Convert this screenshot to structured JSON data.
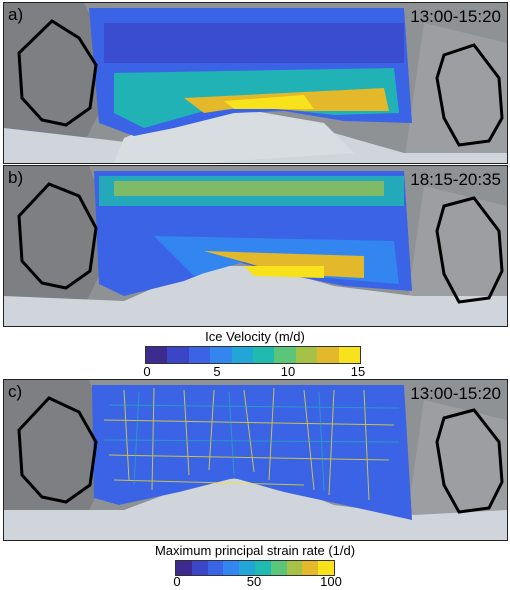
{
  "panels": [
    {
      "label": "a)",
      "time": "13:00-15:20",
      "field": "velocity"
    },
    {
      "label": "b)",
      "time": "18:15-20:35",
      "field": "velocity"
    },
    {
      "label": "c)",
      "time": "13:00-15:20",
      "field": "strain"
    }
  ],
  "colorbars": {
    "velocity": {
      "title": "Ice Velocity (m/d)",
      "ticks": [
        "0",
        "5",
        "10",
        "15"
      ]
    },
    "strain": {
      "title": "Maximum principal strain rate (1/d)",
      "ticks": [
        "0",
        "50",
        "100"
      ]
    }
  },
  "palette": [
    "#3d2c8e",
    "#3a45c8",
    "#3b63e6",
    "#3386f0",
    "#22a6d8",
    "#1fbab0",
    "#5bc57a",
    "#a6c246",
    "#e3b82a",
    "#f8e21c"
  ],
  "colors": {
    "rock": "#8a8c8e",
    "ice": "#c9d0d6",
    "outline": "#000000"
  }
}
